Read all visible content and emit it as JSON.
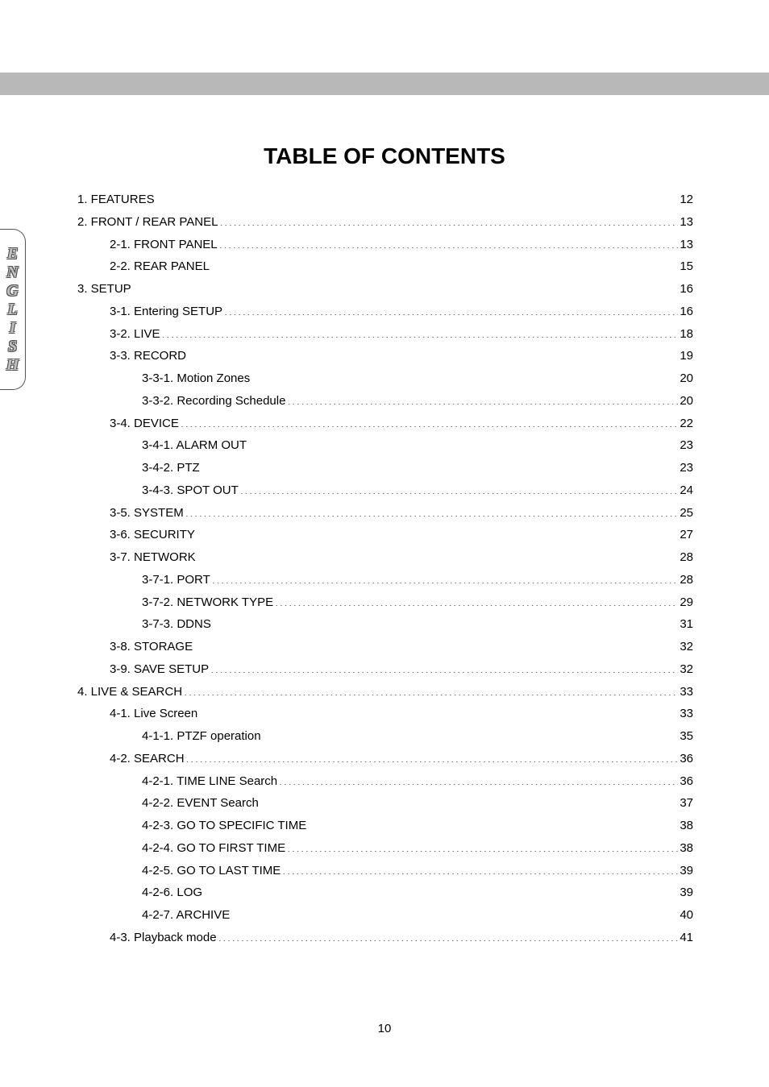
{
  "title": "TABLE OF CONTENTS",
  "side_label_letters": [
    "E",
    "N",
    "G",
    "L",
    "I",
    "S",
    "H"
  ],
  "page_number": "10",
  "colors": {
    "header_bar": "#b8b8b8",
    "background": "#ffffff",
    "text": "#000000",
    "side_letter_face": "#c0c0c0",
    "side_letter_outline": "#505050"
  },
  "typography": {
    "title_font": "Verdana",
    "title_size_pt": 21,
    "title_weight": "bold",
    "body_font": "Arial",
    "body_size_pt": 11,
    "side_font": "Monotype Corsiva",
    "side_size_pt": 15
  },
  "toc": [
    {
      "level": 0,
      "label": "1. FEATURES",
      "page": "12"
    },
    {
      "level": 0,
      "label": "2. FRONT / REAR PANEL",
      "page": "13"
    },
    {
      "level": 1,
      "label": "2-1. FRONT PANEL",
      "page": "13"
    },
    {
      "level": 1,
      "label": "2-2. REAR PANEL",
      "page": "15"
    },
    {
      "level": 0,
      "label": "3. SETUP",
      "page": "16"
    },
    {
      "level": 1,
      "label": "3-1. Entering SETUP",
      "page": "16"
    },
    {
      "level": 1,
      "label": "3-2. LIVE",
      "page": "18"
    },
    {
      "level": 1,
      "label": "3-3. RECORD",
      "page": "19"
    },
    {
      "level": 2,
      "label": "3-3-1. Motion Zones",
      "page": "20"
    },
    {
      "level": 2,
      "label": "3-3-2. Recording Schedule",
      "page": "20"
    },
    {
      "level": 1,
      "label": "3-4. DEVICE",
      "page": "22"
    },
    {
      "level": 2,
      "label": "3-4-1. ALARM OUT",
      "page": "23"
    },
    {
      "level": 2,
      "label": "3-4-2. PTZ",
      "page": "23"
    },
    {
      "level": 2,
      "label": "3-4-3. SPOT OUT",
      "page": "24"
    },
    {
      "level": 1,
      "label": "3-5. SYSTEM",
      "page": "25"
    },
    {
      "level": 1,
      "label": "3-6. SECURITY",
      "page": "27"
    },
    {
      "level": 1,
      "label": "3-7. NETWORK",
      "page": "28"
    },
    {
      "level": 2,
      "label": "3-7-1. PORT",
      "page": "28"
    },
    {
      "level": 2,
      "label": "3-7-2. NETWORK TYPE",
      "page": "29"
    },
    {
      "level": 2,
      "label": "3-7-3. DDNS",
      "page": "31"
    },
    {
      "level": 1,
      "label": "3-8. STORAGE",
      "page": "32"
    },
    {
      "level": 1,
      "label": "3-9. SAVE SETUP",
      "page": "32"
    },
    {
      "level": 0,
      "label": "4. LIVE & SEARCH",
      "page": "33"
    },
    {
      "level": 1,
      "label": "4-1. Live Screen",
      "page": "33"
    },
    {
      "level": 2,
      "label": "4-1-1. PTZF operation",
      "page": "35"
    },
    {
      "level": 1,
      "label": "4-2. SEARCH",
      "page": "36"
    },
    {
      "level": 2,
      "label": "4-2-1. TIME LINE Search",
      "page": "36"
    },
    {
      "level": 2,
      "label": "4-2-2. EVENT Search",
      "page": "37"
    },
    {
      "level": 2,
      "label": "4-2-3. GO TO SPECIFIC TIME",
      "page": "38"
    },
    {
      "level": 2,
      "label": "4-2-4. GO TO FIRST TIME",
      "page": "38"
    },
    {
      "level": 2,
      "label": "4-2-5. GO TO LAST TIME",
      "page": "39"
    },
    {
      "level": 2,
      "label": "4-2-6. LOG",
      "page": "39"
    },
    {
      "level": 2,
      "label": "4-2-7. ARCHIVE",
      "page": "40"
    },
    {
      "level": 1,
      "label": "4-3. Playback mode",
      "page": "41"
    }
  ]
}
